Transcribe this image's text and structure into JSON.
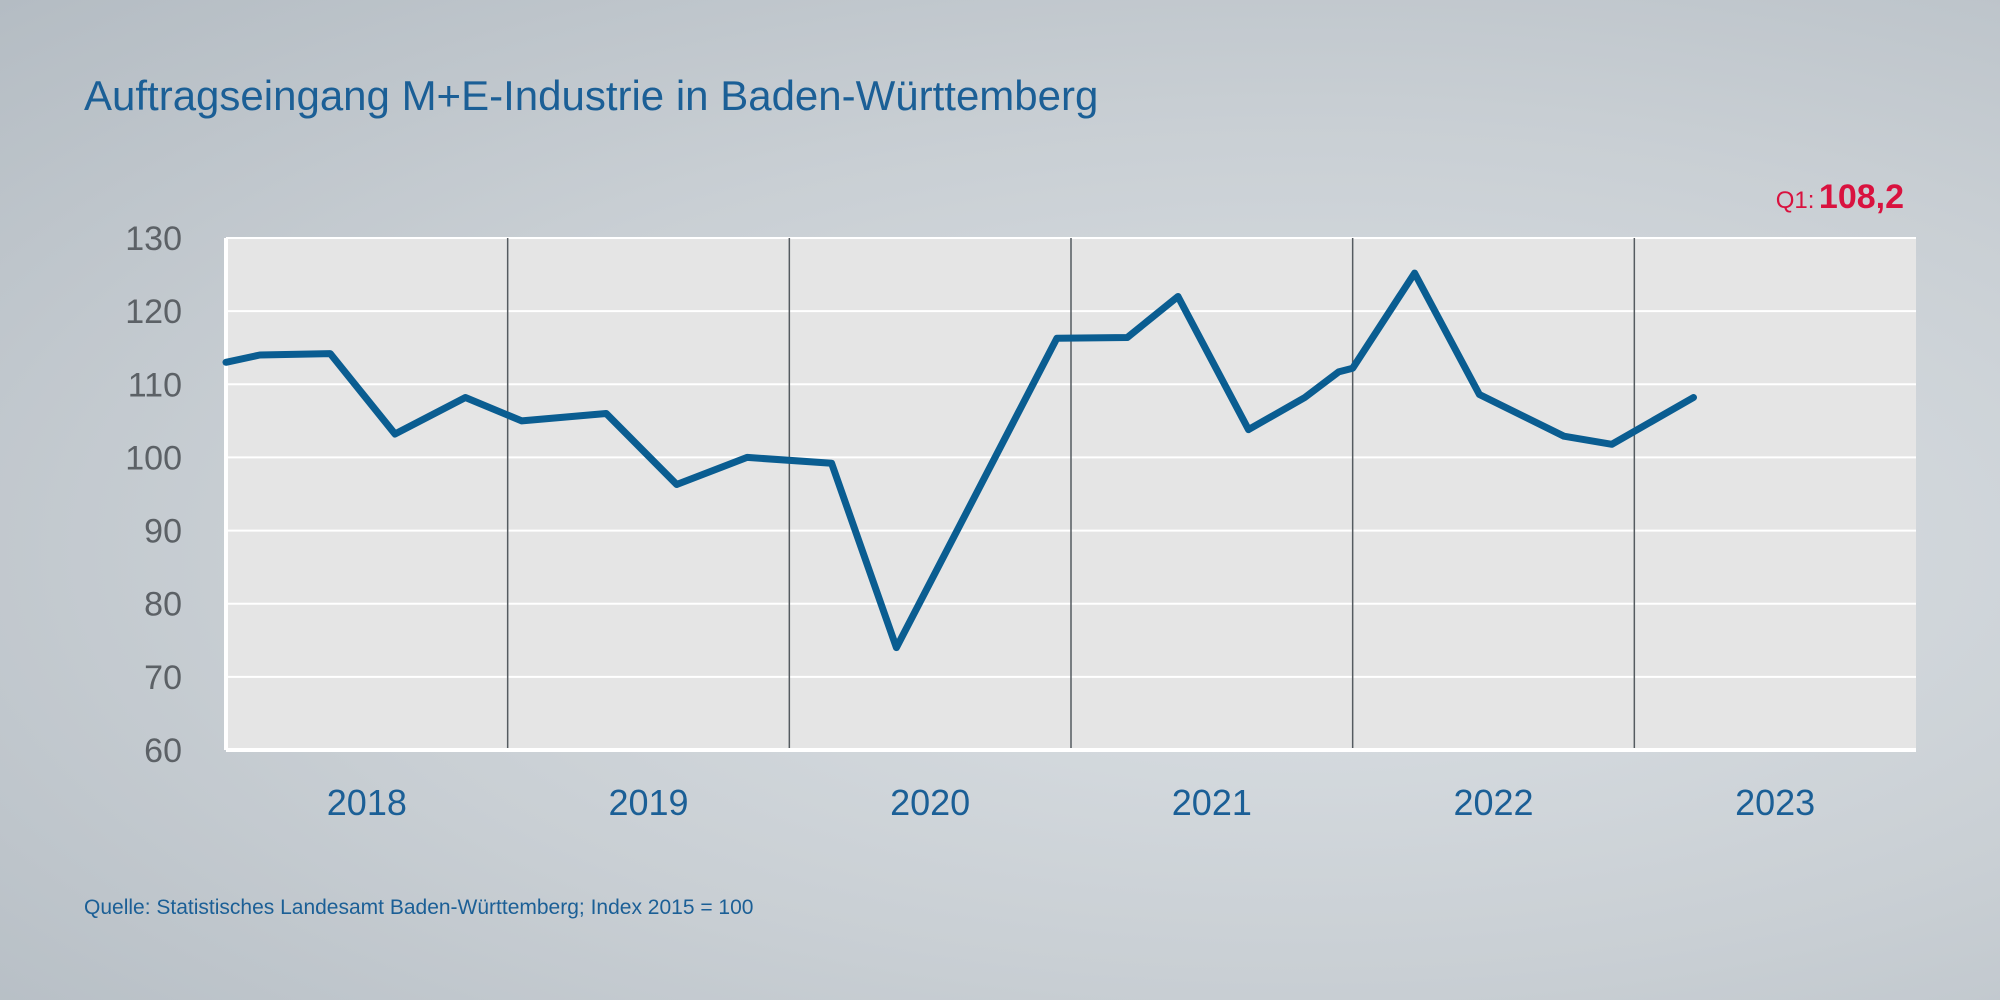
{
  "header": {
    "title": "Auftragseingang M+E-Industrie in Baden-Württemberg"
  },
  "callout": {
    "label": "Q1:",
    "value": "108,2",
    "color": "#d9123f"
  },
  "footer": {
    "source": "Quelle: Statistisches Landesamt Baden-Württemberg; Index 2015 = 100"
  },
  "colors": {
    "line": "#0a5d91",
    "plot_bg": "#e5e5e5",
    "title": "#1b5f96"
  },
  "chart_data": {
    "type": "line",
    "title": "Auftragseingang M+E-Industrie in Baden-Württemberg",
    "xlabel": "",
    "ylabel": "",
    "ylim": [
      60,
      130
    ],
    "yticks": [
      60,
      70,
      80,
      90,
      100,
      110,
      120,
      130
    ],
    "xlim": [
      2017.5,
      2023.5
    ],
    "years": [
      "2018",
      "2019",
      "2020",
      "2021",
      "2022",
      "2023"
    ],
    "year_separators": [
      2018.5,
      2019.5,
      2020.5,
      2021.5,
      2022.5
    ],
    "grid": true,
    "series": [
      {
        "name": "Auftragseingang M+E-Industrie",
        "x": [
          2017.5,
          2017.62,
          2017.87,
          2018.1,
          2018.35,
          2018.55,
          2018.85,
          2019.1,
          2019.35,
          2019.65,
          2019.88,
          2020.45,
          2020.7,
          2020.88,
          2021.13,
          2021.33,
          2021.45,
          2021.5,
          2021.72,
          2021.95,
          2022.25,
          2022.42,
          2022.71
        ],
        "values": [
          113,
          114,
          114.2,
          103.2,
          108.2,
          105,
          106,
          96.3,
          100,
          99.2,
          74,
          116.3,
          116.4,
          122,
          103.8,
          108.2,
          111.7,
          112.2,
          125.2,
          108.6,
          102.9,
          101.8,
          108.2
        ]
      }
    ]
  }
}
